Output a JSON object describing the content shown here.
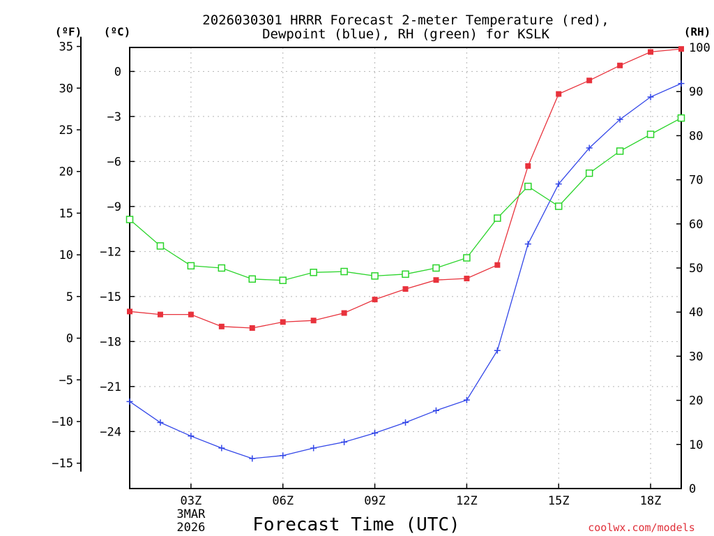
{
  "chart_data": {
    "type": "line",
    "title": "2026030301 HRRR Forecast 2-meter Temperature (red),",
    "subtitle": "Dewpoint (blue), RH (green) for KSLK",
    "xlabel": "Forecast Time (UTC)",
    "credit": "coolwx.com/models",
    "units": {
      "fahrenheit": "(ºF)",
      "celsius": "(ºC)",
      "rh": "(RH)"
    },
    "x": [
      1,
      2,
      3,
      4,
      5,
      6,
      7,
      8,
      9,
      10,
      11,
      12,
      13,
      14,
      15,
      16,
      17,
      18,
      19
    ],
    "xlim": [
      1,
      19
    ],
    "x_ticks": [
      {
        "x": 3,
        "label": "03Z",
        "sub1": "3MAR",
        "sub2": "2026"
      },
      {
        "x": 6,
        "label": "06Z"
      },
      {
        "x": 9,
        "label": "09Z"
      },
      {
        "x": 12,
        "label": "12Z"
      },
      {
        "x": 15,
        "label": "15Z"
      },
      {
        "x": 18,
        "label": "18Z"
      }
    ],
    "ylim_c": [
      -27.8,
      1.6
    ],
    "ylim_rh": [
      0,
      100
    ],
    "celsius_ticks": [
      0,
      -3,
      -6,
      -9,
      -12,
      -15,
      -18,
      -21,
      -24
    ],
    "fahrenheit_ticks": [
      35,
      30,
      25,
      20,
      15,
      10,
      5,
      0,
      -5,
      -10,
      -15
    ],
    "rh_ticks": [
      100,
      90,
      80,
      70,
      60,
      50,
      40,
      30,
      20,
      10,
      0
    ],
    "series": [
      {
        "name": "Temperature",
        "axis": "celsius",
        "color": "#e8323c",
        "marker": "filled-square",
        "values": [
          -16.0,
          -16.2,
          -16.2,
          -17.0,
          -17.1,
          -16.7,
          -16.6,
          -16.1,
          -15.2,
          -14.5,
          -13.9,
          -13.8,
          -12.9,
          -6.3,
          -1.5,
          -0.6,
          0.4,
          1.3,
          1.5
        ]
      },
      {
        "name": "Dewpoint",
        "axis": "celsius",
        "color": "#3246e8",
        "marker": "plus",
        "values": [
          -22.0,
          -23.4,
          -24.3,
          -25.1,
          -25.8,
          -25.6,
          -25.1,
          -24.7,
          -24.1,
          -23.4,
          -22.6,
          -21.9,
          -18.6,
          -11.5,
          -7.5,
          -5.1,
          -3.2,
          -1.7,
          -0.8
        ]
      },
      {
        "name": "RH",
        "axis": "rh",
        "color": "#2ad42a",
        "marker": "open-square",
        "values": [
          61,
          55,
          50.5,
          50,
          47.5,
          47.2,
          49,
          49.2,
          48.2,
          48.6,
          50,
          52.3,
          61.3,
          68.5,
          64,
          71.5,
          76.5,
          80.3,
          84
        ]
      }
    ]
  }
}
